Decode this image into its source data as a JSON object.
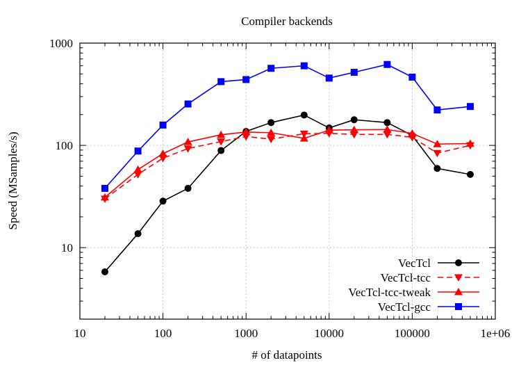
{
  "chart_data": {
    "type": "line",
    "title": "Compiler backends",
    "xlabel": "# of datapoints",
    "ylabel": "Speed (MSamples/s)",
    "x_scale": "log",
    "y_scale": "log",
    "xlim": [
      10,
      1000000
    ],
    "ylim": [
      2,
      1000
    ],
    "grid": true,
    "legend_position": "bottom-right",
    "x_ticks": [
      10,
      100,
      1000,
      10000,
      100000,
      1000000
    ],
    "x_tick_labels": [
      "10",
      "100",
      "1000",
      "10000",
      "100000",
      "1e+06"
    ],
    "y_ticks": [
      10,
      100,
      1000
    ],
    "y_tick_labels": [
      "10",
      "100",
      "1000"
    ],
    "x": [
      20,
      50,
      100,
      200,
      500,
      1000,
      2000,
      5000,
      10000,
      20000,
      50000,
      100000,
      200000,
      500000
    ],
    "series": [
      {
        "name": "VecTcl",
        "color": "#000000",
        "line": "solid",
        "marker": "circle",
        "values": [
          5.8,
          13.7,
          28.5,
          38,
          89,
          137,
          167,
          198,
          148,
          178,
          167,
          125,
          59.5,
          52
        ]
      },
      {
        "name": "VecTcl-tcc",
        "color": "#ff0000",
        "line": "dashed",
        "marker": "triangle-down",
        "values": [
          30,
          52,
          75,
          93,
          109,
          122,
          115,
          130,
          131,
          128,
          128,
          120,
          84,
          100
        ]
      },
      {
        "name": "VecTcl-tcc-tweak",
        "color": "#ff0000",
        "line": "solid",
        "marker": "triangle-up",
        "values": [
          31,
          58,
          83,
          108,
          127,
          135,
          133,
          117,
          141,
          142,
          143,
          131,
          103,
          104
        ]
      },
      {
        "name": "VecTcl-gcc",
        "color": "#0000ff",
        "line": "solid",
        "marker": "square",
        "values": [
          38,
          88,
          158,
          254,
          420,
          440,
          567,
          600,
          455,
          518,
          618,
          465,
          222,
          240
        ]
      }
    ]
  }
}
